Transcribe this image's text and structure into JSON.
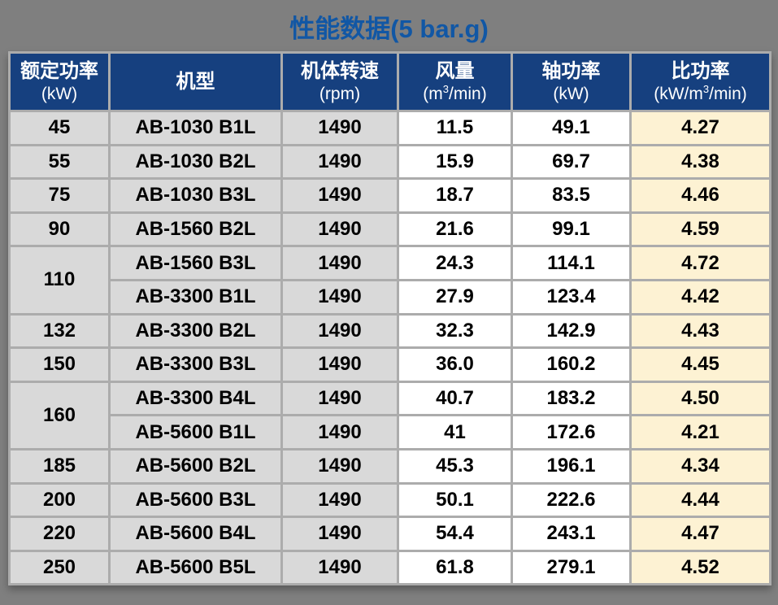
{
  "page": {
    "background_color": "#7F7F7F"
  },
  "title": {
    "text": "性能数据(5 bar.g)",
    "color": "#1157A5"
  },
  "table": {
    "header": {
      "background_color": "#16407F",
      "text_color": "#FFFFFF",
      "columns": [
        {
          "name": "rated_power",
          "label": "额定功率",
          "unit": "(kW)"
        },
        {
          "name": "model",
          "label": "机型",
          "unit": ""
        },
        {
          "name": "speed",
          "label": "机体转速",
          "unit": "(rpm)"
        },
        {
          "name": "air_flow",
          "label": "风量",
          "unit_parts": [
            "(m",
            "3",
            "/min)"
          ]
        },
        {
          "name": "shaft_power",
          "label": "轴功率",
          "unit": "(kW)"
        },
        {
          "name": "specific_power",
          "label": "比功率",
          "unit_parts": [
            "(kW/m",
            "3",
            "/min)"
          ]
        }
      ]
    },
    "column_colors": {
      "rated_power": "#D9D9D9",
      "model": "#D9D9D9",
      "speed": "#D9D9D9",
      "air_flow": "#FFFFFF",
      "shaft_power": "#FFFFFF",
      "specific_power": "#FDF2D3"
    },
    "rows": [
      {
        "rated_power": "45",
        "rowspan": 1,
        "model": "AB-1030 B1L",
        "speed": "1490",
        "air_flow": "11.5",
        "shaft_power": "49.1",
        "specific_power": "4.27"
      },
      {
        "rated_power": "55",
        "rowspan": 1,
        "model": "AB-1030 B2L",
        "speed": "1490",
        "air_flow": "15.9",
        "shaft_power": "69.7",
        "specific_power": "4.38"
      },
      {
        "rated_power": "75",
        "rowspan": 1,
        "model": "AB-1030 B3L",
        "speed": "1490",
        "air_flow": "18.7",
        "shaft_power": "83.5",
        "specific_power": "4.46"
      },
      {
        "rated_power": "90",
        "rowspan": 1,
        "model": "AB-1560 B2L",
        "speed": "1490",
        "air_flow": "21.6",
        "shaft_power": "99.1",
        "specific_power": "4.59"
      },
      {
        "rated_power": "110",
        "rowspan": 2,
        "model": "AB-1560 B3L",
        "speed": "1490",
        "air_flow": "24.3",
        "shaft_power": "114.1",
        "specific_power": "4.72"
      },
      {
        "rated_power": null,
        "rowspan": 0,
        "model": "AB-3300 B1L",
        "speed": "1490",
        "air_flow": "27.9",
        "shaft_power": "123.4",
        "specific_power": "4.42"
      },
      {
        "rated_power": "132",
        "rowspan": 1,
        "model": "AB-3300 B2L",
        "speed": "1490",
        "air_flow": "32.3",
        "shaft_power": "142.9",
        "specific_power": "4.43"
      },
      {
        "rated_power": "150",
        "rowspan": 1,
        "model": "AB-3300 B3L",
        "speed": "1490",
        "air_flow": "36.0",
        "shaft_power": "160.2",
        "specific_power": "4.45"
      },
      {
        "rated_power": "160",
        "rowspan": 2,
        "model": "AB-3300 B4L",
        "speed": "1490",
        "air_flow": "40.7",
        "shaft_power": "183.2",
        "specific_power": "4.50"
      },
      {
        "rated_power": null,
        "rowspan": 0,
        "model": "AB-5600 B1L",
        "speed": "1490",
        "air_flow": "41",
        "shaft_power": "172.6",
        "specific_power": "4.21"
      },
      {
        "rated_power": "185",
        "rowspan": 1,
        "model": "AB-5600 B2L",
        "speed": "1490",
        "air_flow": "45.3",
        "shaft_power": "196.1",
        "specific_power": "4.34"
      },
      {
        "rated_power": "200",
        "rowspan": 1,
        "model": "AB-5600 B3L",
        "speed": "1490",
        "air_flow": "50.1",
        "shaft_power": "222.6",
        "specific_power": "4.44"
      },
      {
        "rated_power": "220",
        "rowspan": 1,
        "model": "AB-5600 B4L",
        "speed": "1490",
        "air_flow": "54.4",
        "shaft_power": "243.1",
        "specific_power": "4.47"
      },
      {
        "rated_power": "250",
        "rowspan": 1,
        "model": "AB-5600 B5L",
        "speed": "1490",
        "air_flow": "61.8",
        "shaft_power": "279.1",
        "specific_power": "4.52"
      }
    ]
  }
}
